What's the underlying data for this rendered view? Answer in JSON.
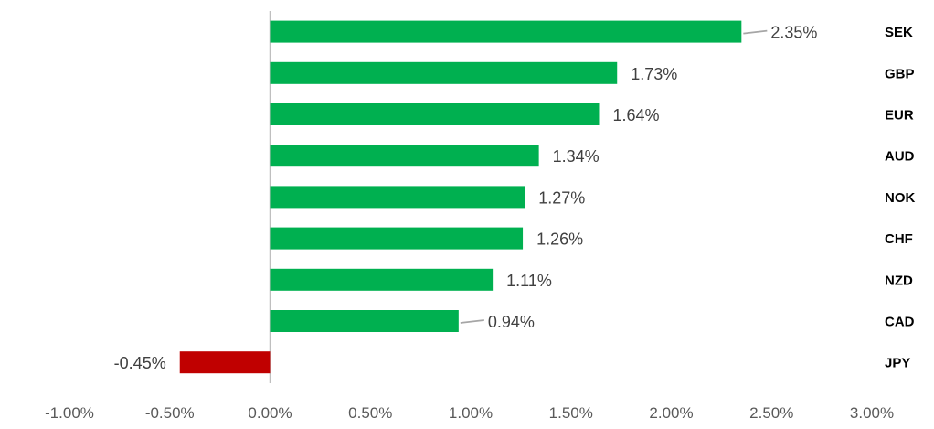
{
  "chart_data": {
    "type": "bar",
    "orientation": "horizontal",
    "categories": [
      "SEK",
      "GBP",
      "EUR",
      "AUD",
      "NOK",
      "CHF",
      "NZD",
      "CAD",
      "JPY"
    ],
    "values": [
      2.35,
      1.73,
      1.64,
      1.34,
      1.27,
      1.26,
      1.11,
      0.94,
      -0.45
    ],
    "value_labels": [
      "2.35%",
      "1.73%",
      "1.64%",
      "1.34%",
      "1.27%",
      "1.26%",
      "1.11%",
      "0.94%",
      "-0.45%"
    ],
    "xlim": [
      -1.0,
      3.0
    ],
    "x_ticks": [
      -1.0,
      -0.5,
      0.0,
      0.5,
      1.0,
      1.5,
      2.0,
      2.5,
      3.0
    ],
    "x_tick_labels": [
      "-1.00%",
      "-0.50%",
      "0.00%",
      "0.50%",
      "1.00%",
      "1.50%",
      "2.00%",
      "2.50%",
      "3.00%"
    ],
    "grid": false,
    "legend": "none",
    "colors": {
      "positive": "#00B050",
      "negative": "#C00000",
      "axis": "#BFBFBF",
      "leader": "#A6A6A6"
    },
    "title": "",
    "xlabel": "",
    "ylabel": ""
  }
}
